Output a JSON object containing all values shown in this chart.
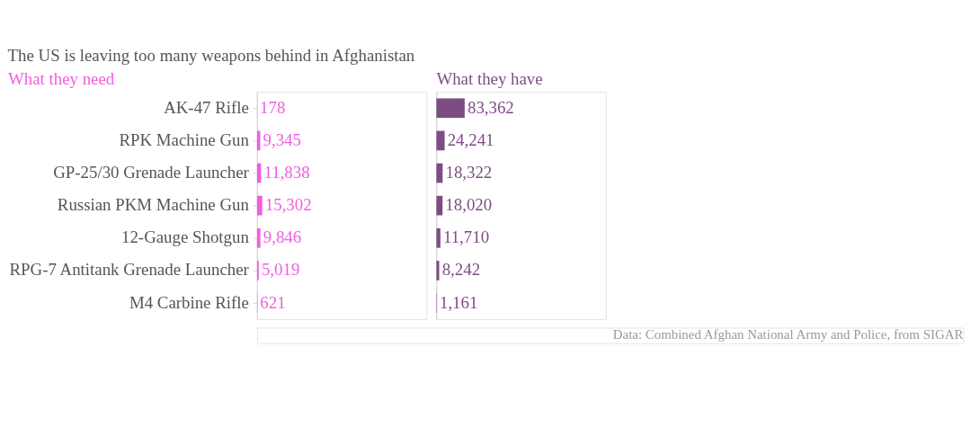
{
  "chart_data": [
    {
      "type": "bar",
      "orientation": "horizontal",
      "title": "The US is leaving too many weapons behind in Afghanistan",
      "subtitle": "What they need",
      "categories": [
        "AK-47 Rifle",
        "RPK Machine Gun",
        "GP-25/30 Grenade Launcher",
        "Russian PKM Machine Gun",
        "12-Gauge Shotgun",
        "RPG-7 Antitank Grenade Launcher",
        "M4 Carbine Rifle"
      ],
      "series": [
        {
          "color": "#f25ce0",
          "values": [
            178,
            9345,
            11838,
            15302,
            9846,
            5019,
            621
          ],
          "value_labels": [
            "178",
            "9,345",
            "11,838",
            "15,302",
            "9,846",
            "5,019",
            "621"
          ]
        }
      ],
      "tick_labels": "y"
    },
    {
      "type": "bar",
      "orientation": "horizontal",
      "subtitle": "What they have",
      "categories": [
        null,
        null,
        null,
        null,
        null,
        null,
        null
      ],
      "series": [
        {
          "color": "#7d4c83",
          "values": [
            83362,
            24241,
            18322,
            18020,
            11710,
            8242,
            1161
          ],
          "value_labels": [
            "83,362",
            "24,241",
            "18,322",
            "18,020",
            "11,710",
            "8,242",
            "1,161"
          ]
        }
      ],
      "tick_labels": false,
      "annotations": [
        "Data: Combined Afghan National Army and Police, from SIGAR"
      ]
    }
  ]
}
